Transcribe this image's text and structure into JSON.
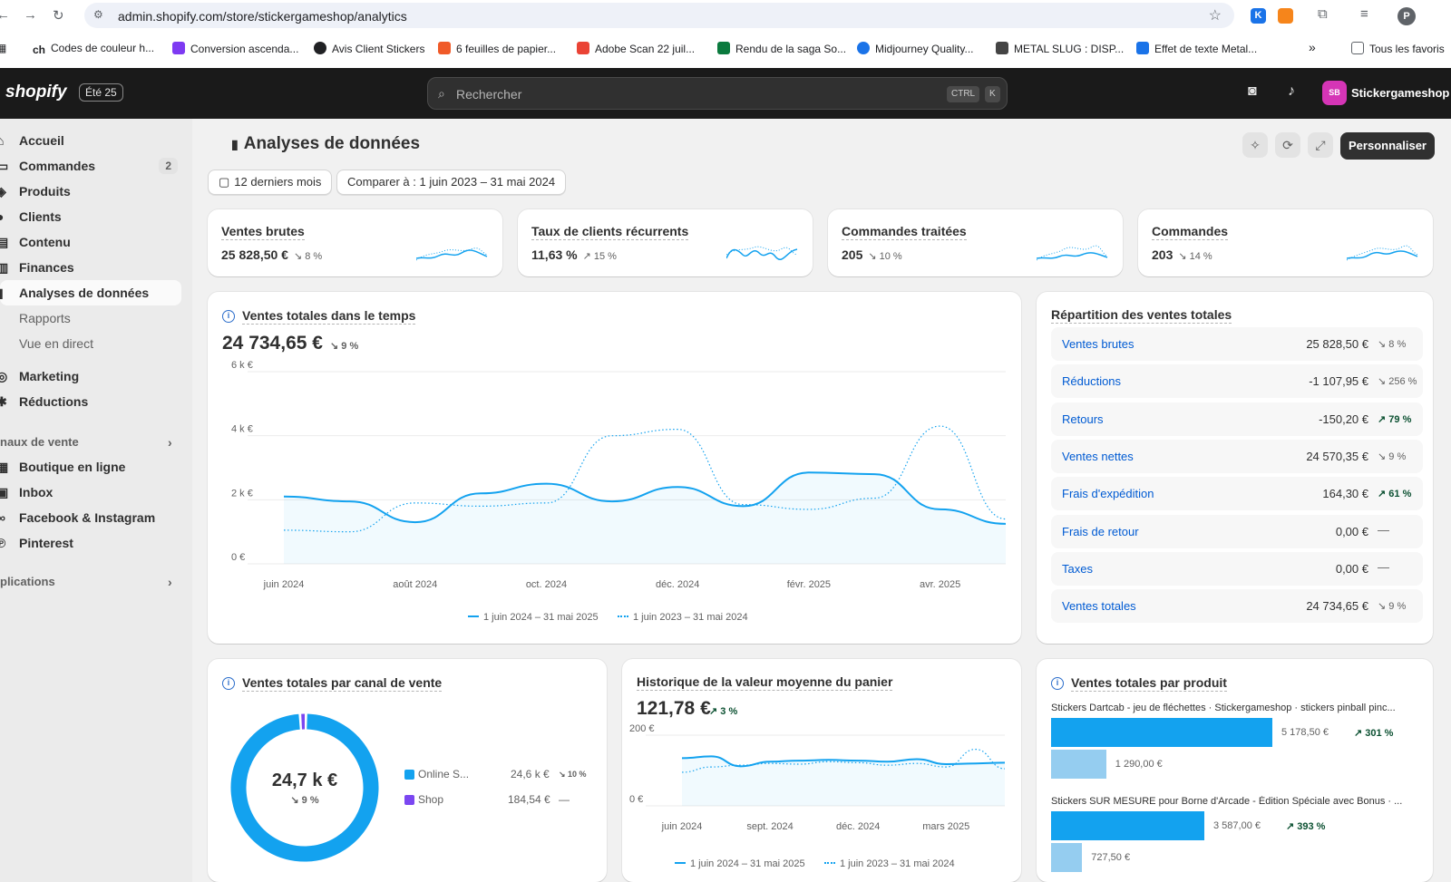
{
  "browser": {
    "url": "admin.shopify.com/store/stickergameshop/analytics",
    "bookmarks": [
      {
        "label": "Codes de couleur h...",
        "color": "#202124"
      },
      {
        "label": "Conversion ascenda...",
        "color": "#7e3af2"
      },
      {
        "label": "Avis Client Stickers",
        "color": "#202124"
      },
      {
        "label": "6 feuilles de papier...",
        "color": "#f05a28"
      },
      {
        "label": "Adobe Scan 22 juil...",
        "color": "#ea4335"
      },
      {
        "label": "Rendu de la saga So...",
        "color": "#0b7a3e"
      },
      {
        "label": "Midjourney Quality...",
        "color": "#1a73e8"
      },
      {
        "label": "METAL SLUG : DISP...",
        "color": "#444444"
      },
      {
        "label": "Effet de texte Metal...",
        "color": "#1a73e8"
      }
    ],
    "all_bookmarks": "Tous les favoris",
    "more": "»",
    "profile_initial": "P",
    "ext_k": "K"
  },
  "topbar": {
    "logo": "shopify",
    "edition": "Été 25",
    "search_placeholder": "Rechercher",
    "kbd_ctrl": "CTRL",
    "kbd_k": "K",
    "avatar": "SB",
    "store": "Stickergameshop"
  },
  "sidebar": {
    "items": [
      {
        "label": "Accueil",
        "icon": "home-icon",
        "glyph": "⌂"
      },
      {
        "label": "Commandes",
        "icon": "orders-icon",
        "glyph": "▭",
        "count": "2"
      },
      {
        "label": "Produits",
        "icon": "tag-icon",
        "glyph": "◈"
      },
      {
        "label": "Clients",
        "icon": "person-icon",
        "glyph": "●"
      },
      {
        "label": "Contenu",
        "icon": "content-icon",
        "glyph": "▤"
      },
      {
        "label": "Finances",
        "icon": "bank-icon",
        "glyph": "▥"
      },
      {
        "label": "Analyses de données",
        "icon": "chart-icon",
        "glyph": "▮"
      }
    ],
    "subitems": [
      "Rapports",
      "Vue en direct"
    ],
    "items2": [
      {
        "label": "Marketing",
        "icon": "target-icon",
        "glyph": "◎"
      },
      {
        "label": "Réductions",
        "icon": "discount-icon",
        "glyph": "✱"
      }
    ],
    "channels_section": "naux de vente",
    "channels": [
      {
        "label": "Boutique en ligne",
        "icon": "store-icon",
        "glyph": "▦"
      },
      {
        "label": "Inbox",
        "icon": "inbox-icon",
        "glyph": "▣"
      },
      {
        "label": "Facebook & Instagram",
        "icon": "meta-icon",
        "glyph": "∞"
      },
      {
        "label": "Pinterest",
        "icon": "pinterest-icon",
        "glyph": "℗"
      }
    ],
    "apps_section": "plications"
  },
  "page": {
    "title": "Analyses de données",
    "date_range": "12 derniers mois",
    "compare": "Comparer à : 1 juin 2023 – 31 mai 2024",
    "customize": "Personnaliser"
  },
  "kpis": [
    {
      "title": "Ventes brutes",
      "value": "25 828,50 €",
      "change": "↘ 8 %"
    },
    {
      "title": "Taux de clients récurrents",
      "value": "11,63 %",
      "change": "↗ 15 %"
    },
    {
      "title": "Commandes traitées",
      "value": "205",
      "change": "↘ 10 %"
    },
    {
      "title": "Commandes",
      "value": "203",
      "change": "↘ 14 %"
    }
  ],
  "sales_over_time": {
    "title": "Ventes totales dans le temps",
    "total": "24 734,65 €",
    "change": "↘ 9 %",
    "y_ticks": [
      "0 €",
      "2 k €",
      "4 k €",
      "6 k €"
    ],
    "x_ticks": [
      "juin 2024",
      "août 2024",
      "oct. 2024",
      "déc. 2024",
      "févr. 2025",
      "avr. 2025"
    ],
    "legend_current": "1 juin 2024 – 31 mai 2025",
    "legend_previous": "1 juin 2023 – 31 mai 2024"
  },
  "breakdown": {
    "title": "Répartition des ventes totales",
    "rows": [
      {
        "label": "Ventes brutes",
        "value": "25 828,50 €",
        "change": "↘ 8 %"
      },
      {
        "label": "Réductions",
        "value": "-1 107,95 €",
        "change": "↘ 256 %"
      },
      {
        "label": "Retours",
        "value": "-150,20 €",
        "change": "↗ 79 %"
      },
      {
        "label": "Ventes nettes",
        "value": "24 570,35 €",
        "change": "↘ 9 %"
      },
      {
        "label": "Frais d'expédition",
        "value": "164,30 €",
        "change": "↗ 61 %"
      },
      {
        "label": "Frais de retour",
        "value": "0,00 €",
        "change": "—"
      },
      {
        "label": "Taxes",
        "value": "0,00 €",
        "change": "—"
      },
      {
        "label": "Ventes totales",
        "value": "24 734,65 €",
        "change": "↘ 9 %"
      }
    ]
  },
  "by_channel": {
    "title": "Ventes totales par canal de vente",
    "center_value": "24,7 k €",
    "center_change": "↘ 9 %",
    "rows": [
      {
        "label": "Online S...",
        "value": "24,6 k €",
        "change": "↘ 10 %",
        "color": "#13a2ef"
      },
      {
        "label": "Shop",
        "value": "184,54 €",
        "change": "—",
        "color": "#7b47f1"
      }
    ]
  },
  "aov": {
    "title": "Historique de la valeur moyenne du panier",
    "value": "121,78 €",
    "change": "↗ 3 %",
    "y_ticks": [
      "0 €",
      "200 €"
    ],
    "x_ticks": [
      "juin 2024",
      "sept. 2024",
      "déc. 2024",
      "mars 2025"
    ],
    "legend_current": "1 juin 2024 – 31 mai 2025",
    "legend_previous": "1 juin 2023 – 31 mai 2024"
  },
  "by_product": {
    "title": "Ventes totales par produit",
    "items": [
      {
        "label": "Stickers Dartcab - jeu de fléchettes · Stickergameshop · stickers pinball pinc...",
        "current": "5 178,50 €",
        "previous": "1 290,00 €",
        "change": "↗ 301 %",
        "current_value": 5178.5,
        "previous_value": 1290
      },
      {
        "label": "Stickers SUR MESURE pour Borne d'Arcade - Édition Spéciale avec Bonus · ...",
        "current": "3 587,00 €",
        "previous": "727,50 €",
        "change": "↗ 393 %",
        "current_value": 3587,
        "previous_value": 727.5
      }
    ]
  },
  "colors": {
    "primary": "#13a2ef",
    "primary_light": "#95cdf0",
    "accent_purple": "#7b47f1",
    "link": "#005bd3",
    "positive": "#0c5132"
  },
  "chart_data": [
    {
      "type": "line",
      "title": "Ventes totales dans le temps",
      "x": [
        "juin 2024",
        "juil. 2024",
        "août 2024",
        "sept. 2024",
        "oct. 2024",
        "nov. 2024",
        "déc. 2024",
        "janv. 2025",
        "févr. 2025",
        "mars 2025",
        "avr. 2025",
        "mai 2025"
      ],
      "series": [
        {
          "name": "1 juin 2024 – 31 mai 2025",
          "values": [
            2100,
            1950,
            1300,
            2200,
            2500,
            1950,
            2400,
            1800,
            2850,
            2800,
            1700,
            1250
          ]
        },
        {
          "name": "1 juin 2023 – 31 mai 2024",
          "values": [
            1050,
            1000,
            1900,
            1800,
            1900,
            4000,
            4200,
            1850,
            1700,
            2050,
            4300,
            1400
          ]
        }
      ],
      "ylim": [
        0,
        6000
      ]
    },
    {
      "type": "pie",
      "title": "Ventes totales par canal de vente",
      "categories": [
        "Online S...",
        "Shop"
      ],
      "values": [
        24550,
        184.54
      ]
    },
    {
      "type": "line",
      "title": "Historique de la valeur moyenne du panier",
      "x": [
        "juin 2024",
        "juil. 2024",
        "août 2024",
        "sept. 2024",
        "oct. 2024",
        "nov. 2024",
        "déc. 2024",
        "janv. 2025",
        "févr. 2025",
        "mars 2025",
        "avr. 2025",
        "mai 2025"
      ],
      "series": [
        {
          "name": "1 juin 2024 – 31 mai 2025",
          "values": [
            135,
            140,
            112,
            125,
            128,
            130,
            128,
            125,
            132,
            118,
            120,
            122
          ]
        },
        {
          "name": "1 juin 2023 – 31 mai 2024",
          "values": [
            95,
            110,
            115,
            120,
            118,
            125,
            122,
            115,
            120,
            110,
            160,
            105
          ]
        }
      ],
      "ylim": [
        0,
        200
      ]
    },
    {
      "type": "bar",
      "title": "Ventes totales par produit",
      "categories": [
        "Stickers Dartcab - jeu de fléchettes · Stickergameshop · stickers pinball pinc...",
        "Stickers SUR MESURE pour Borne d'Arcade - Édition Spéciale avec Bonus · ..."
      ],
      "series": [
        {
          "values": [
            5178.5,
            3587
          ]
        },
        {
          "values": [
            1290,
            727.5
          ]
        }
      ]
    }
  ]
}
